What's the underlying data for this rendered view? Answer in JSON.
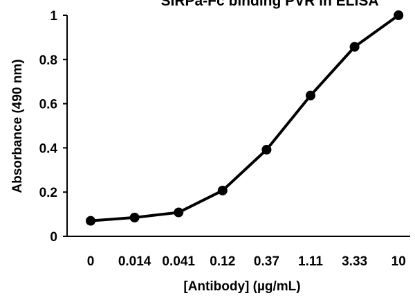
{
  "chart_data": {
    "type": "line",
    "title": "SIRPa-Fc binding PVR in ELISA",
    "xlabel": "[Antibody] (µg/mL)",
    "ylabel": "Absorbance (490 nm)",
    "categories": [
      "0",
      "0.014",
      "0.041",
      "0.12",
      "0.37",
      "1.11",
      "3.33",
      "10"
    ],
    "series": [
      {
        "values": [
          0.07,
          0.085,
          0.108,
          0.207,
          0.392,
          0.637,
          0.857,
          1.0
        ]
      }
    ],
    "ylim": [
      0,
      1
    ],
    "yticks": [
      "0",
      "0.2",
      "0.4",
      "0.6",
      "0.8",
      "1"
    ],
    "grid": false,
    "legend": "none",
    "colors": {
      "line": "#000000",
      "marker": "#000000",
      "axis": "#000000"
    }
  }
}
